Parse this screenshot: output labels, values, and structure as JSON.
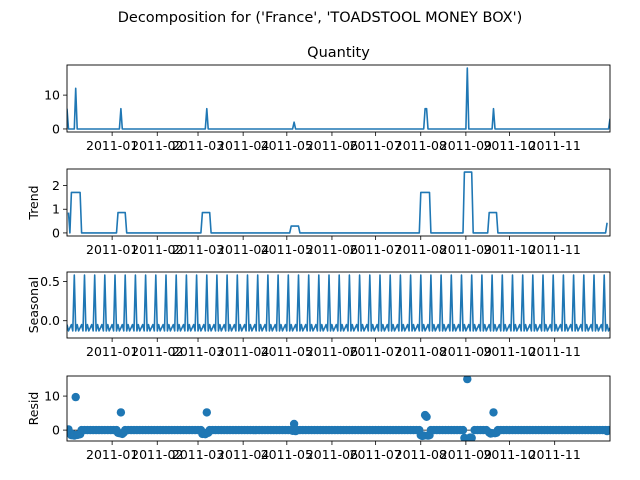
{
  "figure": {
    "suptitle": "Decomposition for ('France', 'TOADSTOOL MONEY BOX')",
    "line_color": "#1f77b4"
  },
  "chart_data": [
    {
      "type": "line",
      "title": "Quantity",
      "ylabel": "",
      "xlim": [
        "2010-12-01",
        "2011-12-09"
      ],
      "ylim": [
        -0.9,
        18.9
      ],
      "yticks": [
        0,
        10
      ],
      "x_ticks": [
        "2011-01",
        "2011-02",
        "2011-03",
        "2011-04",
        "2011-05",
        "2011-06",
        "2011-07",
        "2011-08",
        "2011-09",
        "2011-10",
        "2011-11"
      ],
      "points": [
        [
          "2010-12-01",
          6
        ],
        [
          "2010-12-02",
          0
        ],
        [
          "2010-12-06",
          0
        ],
        [
          "2010-12-07",
          12
        ],
        [
          "2010-12-08",
          0
        ],
        [
          "2011-01-06",
          0
        ],
        [
          "2011-01-07",
          6
        ],
        [
          "2011-01-08",
          0
        ],
        [
          "2011-03-06",
          0
        ],
        [
          "2011-03-07",
          6
        ],
        [
          "2011-03-08",
          0
        ],
        [
          "2011-05-05",
          0
        ],
        [
          "2011-05-06",
          2
        ],
        [
          "2011-05-07",
          0
        ],
        [
          "2011-08-03",
          0
        ],
        [
          "2011-08-04",
          6
        ],
        [
          "2011-08-05",
          6
        ],
        [
          "2011-08-06",
          0
        ],
        [
          "2011-09-01",
          0
        ],
        [
          "2011-09-02",
          18
        ],
        [
          "2011-09-03",
          0
        ],
        [
          "2011-09-19",
          0
        ],
        [
          "2011-09-20",
          6
        ],
        [
          "2011-09-21",
          0
        ],
        [
          "2011-12-08",
          0
        ],
        [
          "2011-12-09",
          3
        ]
      ]
    },
    {
      "type": "line",
      "title": "",
      "ylabel": "Trend",
      "xlim": [
        "2010-12-01",
        "2011-12-09"
      ],
      "ylim": [
        -0.13,
        2.7
      ],
      "yticks": [
        0,
        1,
        2
      ],
      "x_ticks": [
        "2011-01",
        "2011-02",
        "2011-03",
        "2011-04",
        "2011-05",
        "2011-06",
        "2011-07",
        "2011-08",
        "2011-09",
        "2011-10",
        "2011-11"
      ],
      "points": [
        [
          "2010-12-02",
          0.86
        ],
        [
          "2010-12-03",
          0
        ],
        [
          "2010-12-04",
          1.71
        ],
        [
          "2010-12-10",
          1.71
        ],
        [
          "2010-12-11",
          0
        ],
        [
          "2011-01-04",
          0
        ],
        [
          "2011-01-05",
          0.86
        ],
        [
          "2011-01-10",
          0.86
        ],
        [
          "2011-01-11",
          0
        ],
        [
          "2011-03-03",
          0
        ],
        [
          "2011-03-04",
          0.86
        ],
        [
          "2011-03-09",
          0.86
        ],
        [
          "2011-03-10",
          0
        ],
        [
          "2011-05-03",
          0
        ],
        [
          "2011-05-04",
          0.29
        ],
        [
          "2011-05-09",
          0.29
        ],
        [
          "2011-05-10",
          0
        ],
        [
          "2011-07-31",
          0
        ],
        [
          "2011-08-01",
          1.71
        ],
        [
          "2011-08-07",
          1.71
        ],
        [
          "2011-08-08",
          0
        ],
        [
          "2011-08-30",
          0
        ],
        [
          "2011-08-31",
          2.57
        ],
        [
          "2011-09-05",
          2.57
        ],
        [
          "2011-09-06",
          0
        ],
        [
          "2011-09-16",
          0
        ],
        [
          "2011-09-17",
          0.86
        ],
        [
          "2011-09-22",
          0.86
        ],
        [
          "2011-09-23",
          0
        ],
        [
          "2011-12-06",
          0
        ],
        [
          "2011-12-07",
          0.43
        ]
      ]
    },
    {
      "type": "line",
      "title": "",
      "ylabel": "Seasonal",
      "xlim": [
        "2010-12-01",
        "2011-12-09"
      ],
      "ylim": [
        -0.22,
        0.62
      ],
      "yticks": [
        0.0,
        0.5
      ],
      "x_ticks": [
        "2011-01",
        "2011-02",
        "2011-03",
        "2011-04",
        "2011-05",
        "2011-06",
        "2011-07",
        "2011-08",
        "2011-09",
        "2011-10",
        "2011-11"
      ],
      "period_days": 7,
      "first_peak": "2010-12-06",
      "pattern": [
        -0.09,
        -0.05,
        -0.13,
        0.58,
        -0.13,
        -0.05,
        -0.13
      ]
    },
    {
      "type": "scatter",
      "title": "",
      "ylabel": "Resid",
      "xlim": [
        "2010-12-01",
        "2011-12-09"
      ],
      "ylim": [
        -3.2,
        15.9
      ],
      "yticks": [
        0,
        10
      ],
      "x_ticks": [
        "2011-01",
        "2011-02",
        "2011-03",
        "2011-04",
        "2011-05",
        "2011-06",
        "2011-07",
        "2011-08",
        "2011-09",
        "2011-10",
        "2011-11"
      ],
      "baseline": 0,
      "points": [
        [
          "2010-12-02",
          0.2
        ],
        [
          "2010-12-03",
          -1
        ],
        [
          "2010-12-04",
          -1.5
        ],
        [
          "2010-12-05",
          -1.2
        ],
        [
          "2010-12-06",
          -1.6
        ],
        [
          "2010-12-07",
          9.7
        ],
        [
          "2010-12-08",
          -1.4
        ],
        [
          "2010-12-09",
          -1.3
        ],
        [
          "2010-12-10",
          -1.2
        ],
        [
          "2011-01-05",
          -0.8
        ],
        [
          "2011-01-06",
          -0.9
        ],
        [
          "2011-01-07",
          5.2
        ],
        [
          "2011-01-08",
          -1.1
        ],
        [
          "2011-01-09",
          -0.7
        ],
        [
          "2011-03-04",
          -1.1
        ],
        [
          "2011-03-05",
          -0.8
        ],
        [
          "2011-03-06",
          -1.2
        ],
        [
          "2011-03-07",
          5.2
        ],
        [
          "2011-03-08",
          -0.8
        ],
        [
          "2011-05-05",
          -0.2
        ],
        [
          "2011-05-06",
          1.8
        ],
        [
          "2011-05-07",
          -0.3
        ],
        [
          "2011-08-01",
          -1.5
        ],
        [
          "2011-08-02",
          -1.7
        ],
        [
          "2011-08-03",
          -1.6
        ],
        [
          "2011-08-04",
          4.4
        ],
        [
          "2011-08-05",
          3.9
        ],
        [
          "2011-08-06",
          -1.6
        ],
        [
          "2011-08-07",
          -1.5
        ],
        [
          "2011-08-31",
          -2.3
        ],
        [
          "2011-09-01",
          -2.5
        ],
        [
          "2011-09-02",
          15
        ],
        [
          "2011-09-03",
          -2.4
        ],
        [
          "2011-09-04",
          -2.2
        ],
        [
          "2011-09-05",
          -2.3
        ],
        [
          "2011-09-17",
          -0.7
        ],
        [
          "2011-09-18",
          -1.0
        ],
        [
          "2011-09-19",
          -0.9
        ],
        [
          "2011-09-20",
          5.2
        ],
        [
          "2011-09-21",
          -0.9
        ],
        [
          "2011-09-22",
          -0.8
        ],
        [
          "2011-12-07",
          -0.3
        ]
      ]
    }
  ]
}
